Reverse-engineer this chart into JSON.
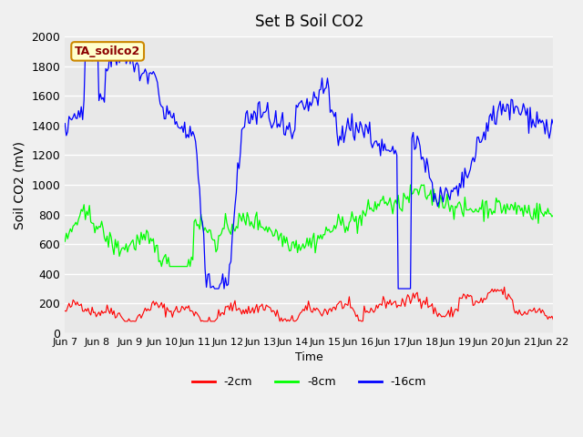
{
  "title": "Set B Soil CO2",
  "ylabel": "Soil CO2 (mV)",
  "xlabel": "Time",
  "ylim": [
    0,
    2000
  ],
  "bg_color": "#e8e8e8",
  "plot_bg_color": "#e8e8e8",
  "grid_color": "white",
  "legend_label": "TA_soilco2",
  "series": {
    "red": {
      "label": "-2cm",
      "color": "red"
    },
    "green": {
      "label": "-8cm",
      "color": "lime"
    },
    "blue": {
      "label": "-16cm",
      "color": "blue"
    }
  },
  "xtick_labels": [
    "Jun 7",
    "Jun 8",
    "Jun 9",
    "Jun 10",
    "Jun 11",
    "Jun 12",
    "Jun 13",
    "Jun 14",
    "Jun 15",
    "Jun 16",
    "Jun 17",
    "Jun 18",
    "Jun 19",
    "Jun 20",
    "Jun 21",
    "Jun 22"
  ],
  "n_points": 360,
  "seed": 42
}
